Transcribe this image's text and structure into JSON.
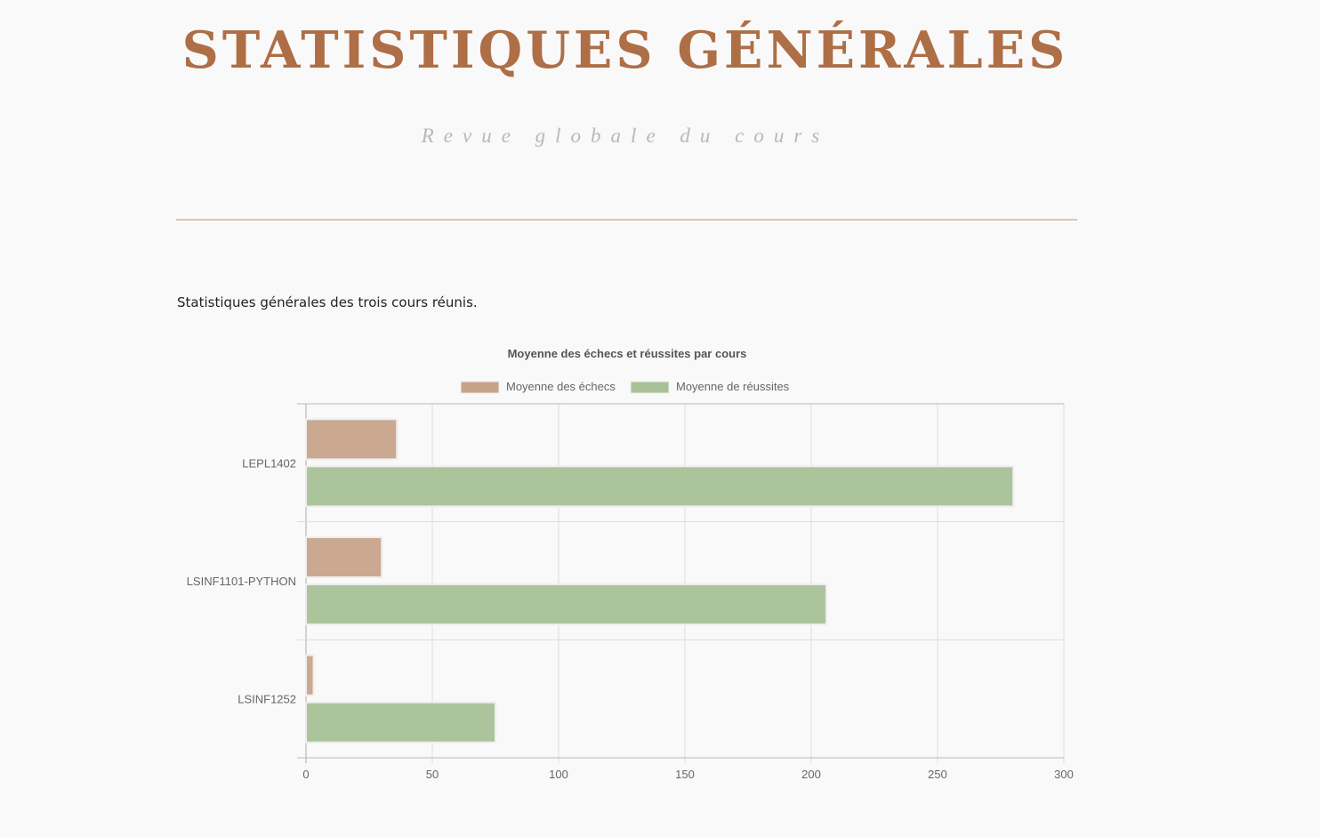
{
  "header": {
    "title": "STATISTIQUES GÉNÉRALES",
    "subtitle": "Revue globale du cours"
  },
  "main": {
    "intro": "Statistiques générales des trois cours réunis."
  },
  "colors": {
    "title": "#ae6e46",
    "subtitle": "#b8b8b8",
    "divider": "#dbc5b8",
    "echecs": "#c8a38a",
    "reussites": "#a8c196"
  },
  "chart_data": {
    "type": "bar",
    "orientation": "horizontal",
    "title": "Moyenne des échecs et réussites par cours",
    "categories": [
      "LEPL1402",
      "LSINF1101-PYTHON",
      "LSINF1252"
    ],
    "series": [
      {
        "name": "Moyenne des échecs",
        "values": [
          36,
          30,
          3
        ],
        "color": "#c8a38a"
      },
      {
        "name": "Moyenne de réussites",
        "values": [
          280,
          206,
          75
        ],
        "color": "#a8c196"
      }
    ],
    "xticks": [
      0,
      50,
      100,
      150,
      200,
      250,
      300
    ],
    "xlim": [
      0,
      300
    ],
    "xlabel": "",
    "ylabel": "",
    "grid": true,
    "legend_position": "top"
  }
}
